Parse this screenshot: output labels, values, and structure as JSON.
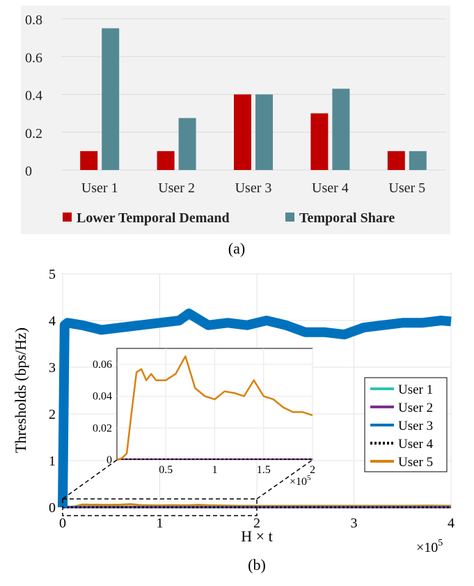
{
  "chart_data": [
    {
      "type": "bar",
      "panel_caption": "(a)",
      "title": "",
      "xlabel": "",
      "ylabel": "",
      "categories": [
        "User 1",
        "User 2",
        "User 3",
        "User 4",
        "User 5"
      ],
      "ylim": [
        0,
        0.8
      ],
      "yticks": [
        0,
        0.2,
        0.4,
        0.6,
        0.8
      ],
      "ytick_labels": [
        "0",
        "0.2",
        "0.4",
        "0.6",
        "0.8"
      ],
      "grid": true,
      "legend_position": "bottom",
      "series": [
        {
          "name": "Lower Temporal Demand",
          "color": "#c00000",
          "values": [
            0.1,
            0.1,
            0.4,
            0.3,
            0.1
          ]
        },
        {
          "name": "Temporal Share",
          "color": "#548994",
          "values": [
            0.75,
            0.275,
            0.4,
            0.43,
            0.1
          ]
        }
      ]
    },
    {
      "type": "line",
      "panel_caption": "(b)",
      "title": "",
      "xlabel": "H × t",
      "ylabel": "Thresholds (bps/Hz)",
      "x_exponent_label": "×10",
      "x_exponent_power": "5",
      "xlim": [
        0,
        4
      ],
      "ylim": [
        0,
        5
      ],
      "xticks": [
        0,
        1,
        2,
        3,
        4
      ],
      "xtick_labels": [
        "0",
        "1",
        "2",
        "3",
        "4"
      ],
      "yticks": [
        0,
        1,
        2,
        3,
        4,
        5
      ],
      "ytick_labels": [
        "0",
        "1",
        "2",
        "3",
        "4",
        "5"
      ],
      "grid": true,
      "legend_position": "right",
      "x_units": "×10^5",
      "series": [
        {
          "name": "User 1",
          "color": "#2ec4b6",
          "dash": "solid",
          "x": [
            0,
            0.03,
            1.0,
            2.0,
            3.0,
            4.0
          ],
          "values": [
            0,
            0.01,
            0.01,
            0.01,
            0.01,
            0.01
          ]
        },
        {
          "name": "User 2",
          "color": "#7e2f8e",
          "dash": "solid",
          "x": [
            0,
            0.03,
            1.0,
            2.0,
            3.0,
            4.0
          ],
          "values": [
            0,
            0.0,
            0.0,
            0.0,
            0.0,
            0.0
          ]
        },
        {
          "name": "User 3",
          "color": "#0072bd",
          "dash": "solid",
          "x": [
            0,
            0.02,
            0.05,
            0.2,
            0.4,
            0.6,
            0.8,
            1.0,
            1.2,
            1.3,
            1.5,
            1.7,
            1.9,
            2.1,
            2.3,
            2.5,
            2.7,
            2.9,
            3.1,
            3.3,
            3.5,
            3.7,
            3.9,
            4.0
          ],
          "values": [
            0,
            3.9,
            3.95,
            3.9,
            3.8,
            3.85,
            3.9,
            3.95,
            4.0,
            4.15,
            3.9,
            3.95,
            3.9,
            4.0,
            3.9,
            3.75,
            3.75,
            3.7,
            3.85,
            3.9,
            3.95,
            3.95,
            4.0,
            3.98
          ]
        },
        {
          "name": "User 4",
          "color": "#000000",
          "dash": "dotted",
          "x": [
            0,
            0.03,
            1.0,
            2.0,
            3.0,
            4.0
          ],
          "values": [
            0,
            0.0,
            0.0,
            0.0,
            0.0,
            0.0
          ]
        },
        {
          "name": "User 5",
          "color": "#d9820f",
          "dash": "solid",
          "x": [
            0,
            0.05,
            0.1,
            0.15,
            0.2,
            0.25,
            0.3,
            0.35,
            0.4,
            0.5,
            0.6,
            0.7,
            0.8,
            0.9,
            1.0,
            1.1,
            1.2,
            1.3,
            1.4,
            1.5,
            1.6,
            1.7,
            1.8,
            1.9,
            2.0,
            2.5,
            3.0,
            3.5,
            3.75,
            4.0
          ],
          "values": [
            0,
            0.001,
            0.004,
            0.03,
            0.055,
            0.057,
            0.05,
            0.054,
            0.05,
            0.05,
            0.054,
            0.065,
            0.045,
            0.04,
            0.038,
            0.043,
            0.042,
            0.04,
            0.05,
            0.04,
            0.038,
            0.033,
            0.03,
            0.03,
            0.028,
            0.03,
            0.03,
            0.03,
            0.035,
            0.03
          ]
        }
      ],
      "inset": {
        "xlim": [
          0,
          2
        ],
        "ylim": [
          0,
          0.07
        ],
        "xticks": [
          0.5,
          1,
          1.5,
          2
        ],
        "xtick_labels": [
          "0.5",
          "1",
          "1.5",
          "2"
        ],
        "yticks": [
          0,
          0.02,
          0.04,
          0.06
        ],
        "ytick_labels": [
          "0",
          "0.02",
          "0.04",
          "0.06"
        ],
        "x_exponent_label": "×10",
        "x_exponent_power": "5",
        "shows_series": "User 5"
      }
    }
  ]
}
